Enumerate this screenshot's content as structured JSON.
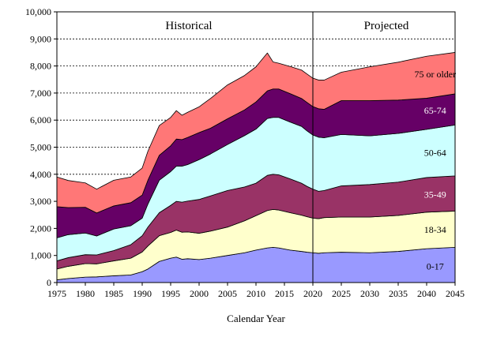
{
  "chart_data": {
    "type": "area",
    "stacked": true,
    "title": "",
    "xlabel": "Calendar Year",
    "ylabel": "",
    "xlim": [
      1975,
      2045
    ],
    "ylim": [
      0,
      10000
    ],
    "x_ticks": [
      1975,
      1980,
      1985,
      1990,
      1995,
      2000,
      2005,
      2010,
      2015,
      2020,
      2025,
      2030,
      2035,
      2040,
      2045
    ],
    "x_tick_labels": [
      "1975",
      "1980",
      "1985",
      "1990",
      "1995",
      "2000",
      "2005",
      "2010",
      "2015",
      "2020",
      "2025",
      "2030",
      "2035",
      "2040",
      "2045"
    ],
    "y_ticks": [
      0,
      1000,
      2000,
      3000,
      4000,
      5000,
      6000,
      7000,
      8000,
      9000,
      10000
    ],
    "y_tick_labels": [
      "0",
      "1,000",
      "2,000",
      "3,000",
      "4,000",
      "5,000",
      "6,000",
      "7,000",
      "8,000",
      "9,000",
      "10,000"
    ],
    "grid": "horizontal dashed",
    "divider_year": 2020,
    "region_labels": {
      "historical": "Historical",
      "projected": "Projected"
    },
    "x": [
      1975,
      1977,
      1980,
      1982,
      1985,
      1988,
      1990,
      1991,
      1993,
      1995,
      1996,
      1997,
      1998,
      2000,
      2002,
      2005,
      2008,
      2010,
      2012,
      2013,
      2014,
      2016,
      2018,
      2019,
      2020,
      2021,
      2022,
      2025,
      2030,
      2035,
      2040,
      2045
    ],
    "series": [
      {
        "name": "0-17",
        "color": "#9999ff",
        "values": [
          100,
          150,
          200,
          210,
          250,
          280,
          400,
          500,
          780,
          900,
          940,
          860,
          880,
          850,
          900,
          1000,
          1100,
          1200,
          1280,
          1300,
          1280,
          1200,
          1150,
          1120,
          1100,
          1080,
          1100,
          1120,
          1100,
          1150,
          1250,
          1300
        ]
      },
      {
        "name": "18-34",
        "color": "#ffffcc",
        "values": [
          400,
          450,
          500,
          480,
          550,
          620,
          730,
          850,
          950,
          950,
          1000,
          1000,
          990,
          970,
          1000,
          1050,
          1180,
          1270,
          1380,
          1400,
          1400,
          1380,
          1340,
          1310,
          1280,
          1280,
          1300,
          1300,
          1320,
          1330,
          1350,
          1340
        ]
      },
      {
        "name": "35-49",
        "color": "#993366",
        "values": [
          300,
          320,
          330,
          330,
          380,
          500,
          600,
          700,
          850,
          1000,
          1060,
          1110,
          1140,
          1250,
          1300,
          1350,
          1250,
          1200,
          1300,
          1300,
          1300,
          1250,
          1180,
          1120,
          1070,
          1010,
          1000,
          1150,
          1200,
          1230,
          1280,
          1300
        ]
      },
      {
        "name": "50-64",
        "color": "#ccffff",
        "values": [
          850,
          850,
          800,
          700,
          800,
          700,
          650,
          850,
          1200,
          1250,
          1300,
          1330,
          1350,
          1470,
          1550,
          1700,
          1900,
          2000,
          2100,
          2100,
          2120,
          2100,
          2100,
          2050,
          2000,
          2000,
          1950,
          1900,
          1800,
          1800,
          1780,
          1880
        ]
      },
      {
        "name": "65-74",
        "color": "#660066",
        "values": [
          1150,
          1000,
          950,
          850,
          850,
          850,
          850,
          880,
          920,
          950,
          1000,
          980,
          1000,
          1000,
          950,
          950,
          950,
          1000,
          1020,
          1050,
          1050,
          1050,
          1030,
          1050,
          1050,
          1050,
          1050,
          1250,
          1300,
          1230,
          1150,
          1150
        ]
      },
      {
        "name": "75 or older",
        "color": "#ff7777",
        "values": [
          1100,
          1000,
          900,
          880,
          950,
          950,
          1000,
          1070,
          1100,
          1050,
          1050,
          900,
          930,
          950,
          1100,
          1250,
          1270,
          1300,
          1400,
          1000,
          950,
          1000,
          1050,
          1050,
          1050,
          1060,
          1080,
          1050,
          1250,
          1400,
          1550,
          1530
        ]
      }
    ],
    "band_labels": [
      {
        "series": "0-17",
        "text": "0-17",
        "at": {
          "year": 2041.5,
          "value": 600
        }
      },
      {
        "series": "18-34",
        "text": "18-34",
        "at": {
          "year": 2041.5,
          "value": 1950
        }
      },
      {
        "series": "35-49",
        "text": "35-49",
        "at": {
          "year": 2041.5,
          "value": 3250
        }
      },
      {
        "series": "50-64",
        "text": "50-64",
        "at": {
          "year": 2041.5,
          "value": 4800
        }
      },
      {
        "series": "65-74",
        "text": "65-74",
        "at": {
          "year": 2041.5,
          "value": 6350
        }
      },
      {
        "series": "75 or older",
        "text": "75 or older",
        "at": {
          "year": 2041.5,
          "value": 7700
        }
      }
    ]
  }
}
